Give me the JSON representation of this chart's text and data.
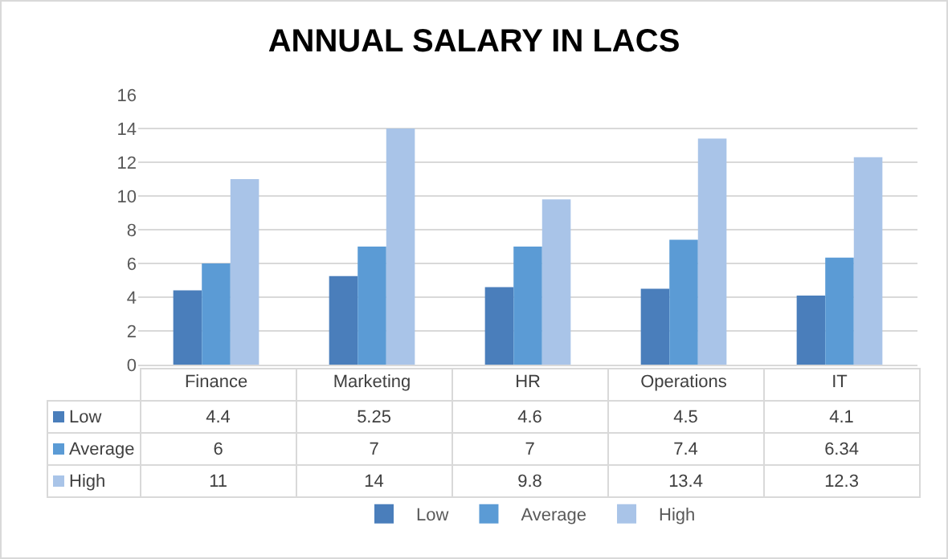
{
  "chart_data": {
    "type": "bar",
    "title": "ANNUAL SALARY IN LACS",
    "categories": [
      "Finance",
      "Marketing",
      "HR",
      "Operations",
      "IT"
    ],
    "series": [
      {
        "name": "Low",
        "color": "#4a7ebb",
        "values": [
          4.4,
          5.25,
          4.6,
          4.5,
          4.1
        ]
      },
      {
        "name": "Average",
        "color": "#5b9bd5",
        "values": [
          6,
          7,
          7,
          7.4,
          6.34
        ]
      },
      {
        "name": "High",
        "color": "#a9c4e8",
        "values": [
          11,
          14,
          9.8,
          13.4,
          12.3
        ]
      }
    ],
    "ylim": [
      0,
      16
    ],
    "yticks": [
      0,
      2,
      4,
      6,
      8,
      10,
      12,
      14,
      16
    ],
    "grid": "y",
    "legend": "bottom",
    "data_labels": true
  }
}
